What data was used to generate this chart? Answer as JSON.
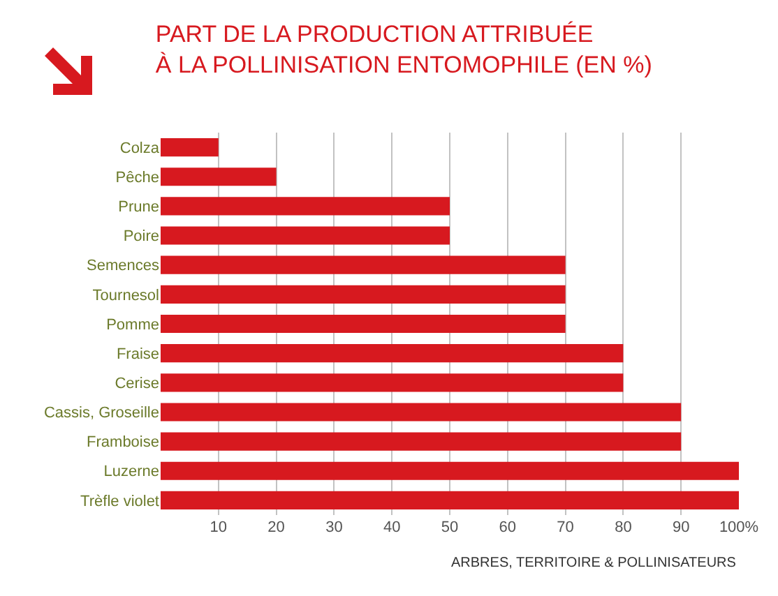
{
  "chart_data": {
    "type": "bar",
    "orientation": "horizontal",
    "title": "PART DE LA PRODUCTION ATTRIBUÉE\nÀ LA POLLINISATION ENTOMOPHILE (EN %)",
    "categories": [
      "Colza",
      "Pêche",
      "Prune",
      "Poire",
      "Semences",
      "Tournesol",
      "Pomme",
      "Fraise",
      "Cerise",
      "Cassis, Groseille",
      "Framboise",
      "Luzerne",
      "Trèfle violet"
    ],
    "values": [
      10,
      20,
      50,
      50,
      70,
      70,
      70,
      80,
      80,
      90,
      90,
      100,
      100
    ],
    "color": "#d7191f",
    "xlim": [
      0,
      100
    ],
    "xticks": [
      10,
      20,
      30,
      40,
      50,
      60,
      70,
      80,
      90,
      {
        "value": 100,
        "label": "100%"
      }
    ],
    "grid": "x",
    "annotations": [
      "ARBRES, TERRITOIRE & POLLINISATEURS"
    ]
  }
}
